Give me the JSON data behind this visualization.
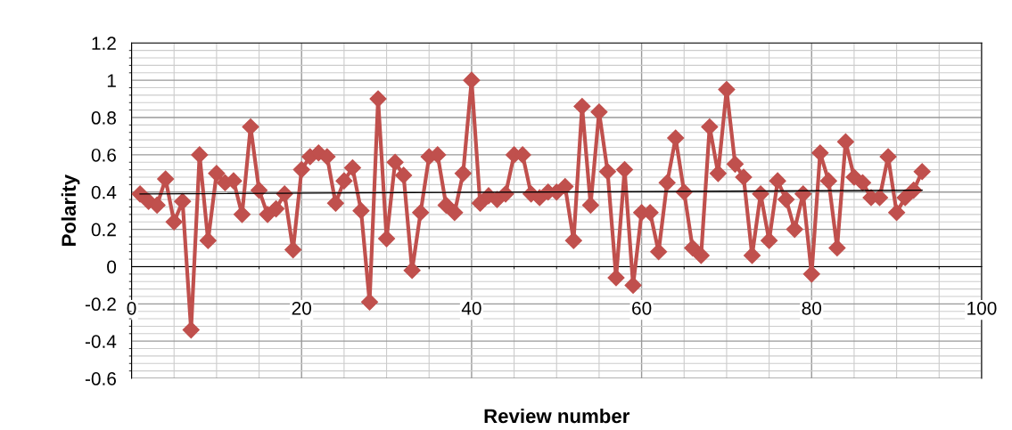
{
  "chart_data": {
    "type": "line",
    "xlabel": "Review number",
    "ylabel": "Polarity",
    "xlim": [
      0,
      100
    ],
    "xticks": [
      0,
      20,
      40,
      60,
      80,
      100
    ],
    "ylim": [
      -0.6,
      1.2
    ],
    "yticks": [
      -0.6,
      -0.4,
      -0.2,
      0,
      0.2,
      0.4,
      0.6,
      0.8,
      1,
      1.2
    ],
    "grid": true,
    "marker": "diamond",
    "line_style": "solid",
    "series": [
      {
        "color": "#c0504d",
        "x": [
          1,
          2,
          3,
          4,
          5,
          6,
          7,
          8,
          9,
          10,
          11,
          12,
          13,
          14,
          15,
          16,
          17,
          18,
          19,
          20,
          21,
          22,
          23,
          24,
          25,
          26,
          27,
          28,
          29,
          30,
          31,
          32,
          33,
          34,
          35,
          36,
          37,
          38,
          39,
          40,
          41,
          42,
          43,
          44,
          45,
          46,
          47,
          48,
          49,
          50,
          51,
          52,
          53,
          54,
          55,
          56,
          57,
          58,
          59,
          60,
          61,
          62,
          63,
          64,
          65,
          66,
          67,
          68,
          69,
          70,
          71,
          72,
          73,
          74,
          75,
          76,
          77,
          78,
          79,
          80,
          81,
          82,
          83,
          84,
          85,
          86,
          87,
          88,
          89,
          90,
          91,
          92,
          93
        ],
        "values": [
          0.39,
          0.35,
          0.33,
          0.47,
          0.24,
          0.35,
          -0.34,
          0.6,
          0.14,
          0.5,
          0.45,
          0.46,
          0.28,
          0.75,
          0.41,
          0.28,
          0.31,
          0.39,
          0.09,
          0.52,
          0.59,
          0.61,
          0.59,
          0.34,
          0.46,
          0.53,
          0.3,
          -0.19,
          0.9,
          0.15,
          0.56,
          0.49,
          -0.02,
          0.29,
          0.59,
          0.6,
          0.33,
          0.29,
          0.5,
          1.0,
          0.34,
          0.38,
          0.36,
          0.39,
          0.6,
          0.6,
          0.39,
          0.37,
          0.4,
          0.4,
          0.43,
          0.14,
          0.86,
          0.33,
          0.83,
          0.51,
          -0.06,
          0.52,
          -0.1,
          0.29,
          0.29,
          0.08,
          0.45,
          0.69,
          0.4,
          0.1,
          0.06,
          0.75,
          0.5,
          0.95,
          0.55,
          0.48,
          0.06,
          0.39,
          0.14,
          0.46,
          0.36,
          0.2,
          0.39,
          -0.04,
          0.61,
          0.46,
          0.1,
          0.67,
          0.48,
          0.45,
          0.37,
          0.37,
          0.59,
          0.29,
          0.37,
          0.41,
          0.51
        ]
      },
      {
        "type": "line",
        "color": "#000000",
        "marker": "none",
        "x": [
          1,
          93
        ],
        "values": [
          0.39,
          0.41
        ]
      }
    ]
  }
}
